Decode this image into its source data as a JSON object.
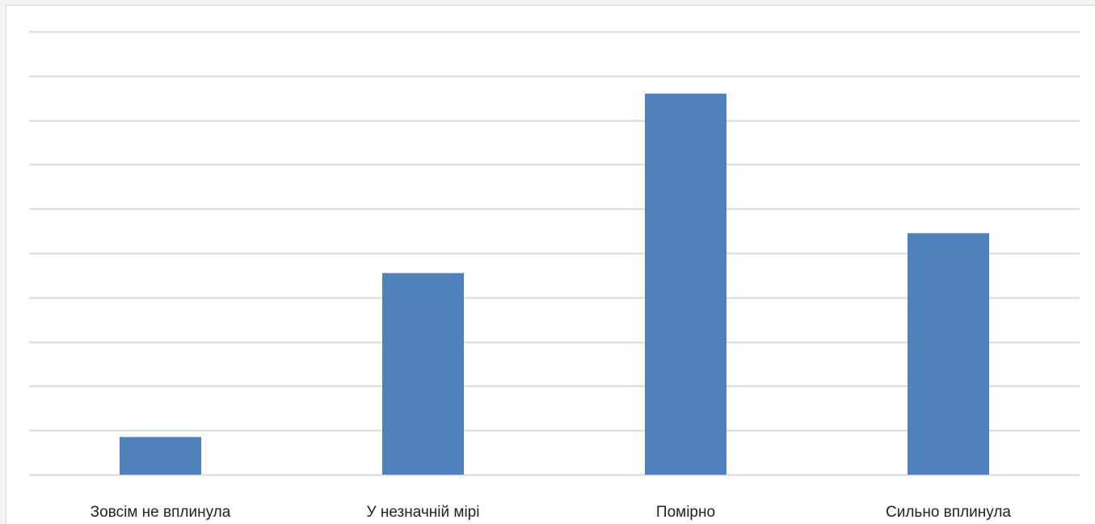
{
  "chart_data": {
    "type": "bar",
    "categories": [
      "Зовсім не вплинула",
      "У незначній мірі",
      "Помірно",
      "Сильно вплинула"
    ],
    "values": [
      8.5,
      45.5,
      86,
      54.5
    ],
    "title": "",
    "xlabel": "",
    "ylabel": "",
    "ylim": [
      0,
      100
    ],
    "grid": true,
    "legend": "none",
    "bar_color": "#4f81bd",
    "grid_color": "#d9d9d9"
  }
}
